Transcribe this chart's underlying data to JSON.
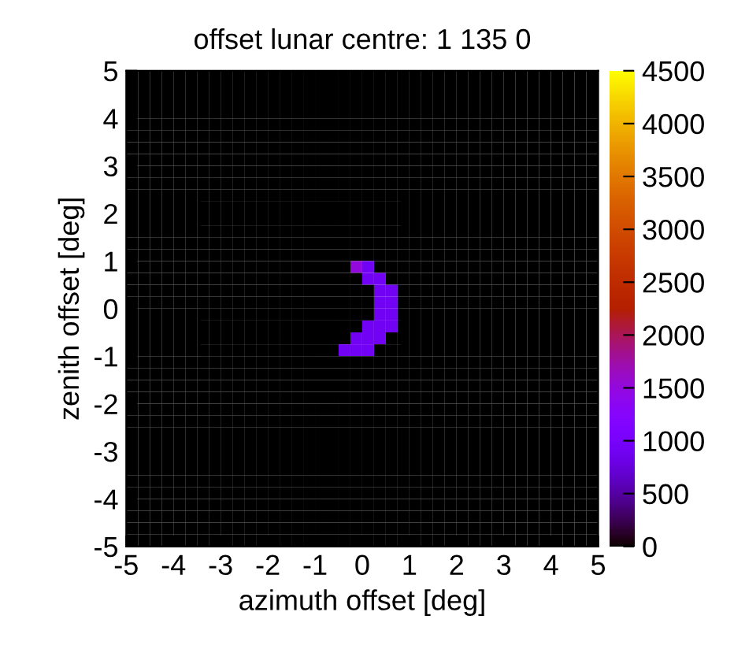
{
  "chart_data": {
    "type": "heatmap",
    "title": "offset lunar centre: 1 135 0",
    "xlabel": "azimuth offset [deg]",
    "ylabel": "zenith offset [deg]",
    "xlim": [
      -5,
      5
    ],
    "ylim": [
      -5,
      5
    ],
    "xticks": [
      -5,
      -4,
      -3,
      -2,
      -1,
      0,
      1,
      2,
      3,
      4,
      5
    ],
    "yticks": [
      -5,
      -4,
      -3,
      -2,
      -1,
      0,
      1,
      2,
      3,
      4,
      5
    ],
    "clim": [
      0,
      4500
    ],
    "cticks": [
      0,
      500,
      1000,
      1500,
      2000,
      2500,
      3000,
      3500,
      4000,
      4500
    ],
    "grid": false,
    "cells": [
      [
        0,
        0,
        0,
        0,
        0,
        0,
        0,
        0,
        0,
        0,
        0,
        0,
        0,
        0,
        0,
        0,
        0,
        0,
        0,
        0,
        0,
        0,
        0,
        0,
        0,
        0,
        0,
        0,
        0,
        0,
        0,
        0,
        0,
        0,
        0,
        0,
        0,
        0,
        0,
        0
      ],
      [
        0,
        0,
        0,
        0,
        0,
        0,
        0,
        0,
        0,
        0,
        0,
        0,
        0,
        0,
        0,
        0,
        0,
        0,
        0,
        0,
        0,
        0,
        0,
        0,
        0,
        0,
        0,
        0,
        0,
        0,
        0,
        0,
        0,
        0,
        0,
        0,
        0,
        0,
        0,
        0
      ],
      [
        0,
        0,
        0,
        0,
        0,
        0,
        0,
        0,
        0,
        0,
        0,
        0,
        0,
        0,
        0,
        0,
        0,
        0,
        0,
        0,
        0,
        0,
        0,
        0,
        0,
        0,
        0,
        0,
        0,
        0,
        0,
        0,
        0,
        0,
        0,
        0,
        0,
        0,
        0,
        0
      ],
      [
        0,
        0,
        0,
        0,
        0,
        0,
        0,
        0,
        0,
        0,
        0,
        0,
        0,
        0,
        0,
        0,
        0,
        0,
        0,
        0,
        0,
        0,
        0,
        0,
        0,
        0,
        0,
        0,
        0,
        0,
        0,
        0,
        0,
        0,
        0,
        0,
        0,
        0,
        0,
        0
      ],
      [
        0,
        0,
        0,
        0,
        0,
        0,
        0,
        0,
        0,
        0,
        0,
        0,
        0,
        0,
        0,
        0,
        0,
        0,
        0,
        0,
        0,
        0,
        0,
        0,
        0,
        0,
        0,
        0,
        0,
        0,
        0,
        0,
        0,
        0,
        0,
        0,
        0,
        0,
        0,
        0
      ],
      [
        0,
        0,
        0,
        0,
        0,
        0,
        0,
        0,
        0,
        0,
        0,
        0,
        0,
        0,
        0,
        0,
        0,
        0,
        0,
        0,
        0,
        0,
        0,
        0,
        0,
        0,
        0,
        0,
        0,
        0,
        0,
        0,
        0,
        0,
        0,
        0,
        0,
        0,
        0,
        0
      ],
      [
        0,
        0,
        0,
        0,
        0,
        0,
        0,
        0,
        0,
        0,
        0,
        0,
        0,
        0,
        0,
        0,
        0,
        0,
        0,
        0,
        0,
        0,
        0,
        0,
        0,
        0,
        0,
        0,
        0,
        0,
        0,
        0,
        0,
        0,
        0,
        0,
        0,
        0,
        0,
        0
      ],
      [
        0,
        0,
        0,
        0,
        0,
        0,
        0,
        0,
        0,
        0,
        0,
        0,
        0,
        0,
        0,
        0,
        0,
        0,
        0,
        0,
        0,
        0,
        0,
        0,
        0,
        0,
        0,
        0,
        0,
        0,
        0,
        0,
        0,
        0,
        0,
        0,
        0,
        0,
        0,
        0
      ],
      [
        0,
        0,
        0,
        0,
        0,
        0,
        0,
        0,
        0,
        0,
        0,
        0,
        0,
        0,
        0,
        0,
        0,
        0,
        0,
        0,
        0,
        0,
        0,
        0,
        0,
        0,
        0,
        0,
        0,
        0,
        0,
        0,
        0,
        0,
        0,
        0,
        0,
        0,
        0,
        0
      ],
      [
        0,
        0,
        0,
        0,
        0,
        0,
        0,
        0,
        0,
        0,
        0,
        0,
        0,
        0,
        0,
        0,
        0,
        0,
        0,
        0,
        0,
        0,
        0,
        0,
        0,
        0,
        0,
        0,
        0,
        0,
        0,
        0,
        0,
        0,
        0,
        0,
        0,
        0,
        0,
        0
      ],
      [
        0,
        0,
        0,
        0,
        0,
        0,
        0,
        0,
        0,
        0,
        0,
        0,
        0,
        0,
        0,
        0,
        0,
        0,
        0,
        0,
        0,
        0,
        0,
        0,
        0,
        0,
        0,
        0,
        0,
        0,
        0,
        0,
        0,
        0,
        0,
        0,
        0,
        0,
        0,
        0
      ],
      [
        0,
        0,
        0,
        0,
        0,
        0,
        0,
        0,
        0,
        0,
        0,
        0,
        0,
        0,
        0,
        0,
        0,
        0,
        0,
        0,
        0,
        0,
        0,
        0,
        0,
        0,
        0,
        0,
        0,
        0,
        0,
        0,
        0,
        0,
        0,
        0,
        0,
        0,
        0,
        0
      ],
      [
        0,
        0,
        0,
        0,
        0,
        0,
        0,
        0,
        0,
        0,
        0,
        0,
        0,
        0,
        0,
        0,
        0,
        0,
        0,
        0,
        0,
        0,
        0,
        0,
        0,
        0,
        0,
        0,
        0,
        0,
        0,
        0,
        0,
        0,
        0,
        0,
        0,
        0,
        0,
        0
      ],
      [
        0,
        0,
        0,
        0,
        0,
        0,
        0,
        0,
        0,
        0,
        0,
        0,
        0,
        0,
        0,
        0,
        0,
        0,
        0,
        0,
        0,
        0,
        0,
        0,
        0,
        0,
        0,
        0,
        0,
        0,
        0,
        0,
        0,
        0,
        0,
        0,
        0,
        0,
        0,
        0
      ],
      [
        0,
        0,
        0,
        0,
        0,
        0,
        0,
        0,
        0,
        0,
        0,
        0,
        0,
        0,
        0,
        0,
        0,
        0,
        0,
        0,
        0,
        0,
        0,
        0,
        0,
        0,
        0,
        0,
        0,
        0,
        0,
        0,
        0,
        0,
        0,
        0,
        0,
        0,
        0,
        0
      ],
      [
        0,
        0,
        0,
        0,
        0,
        0,
        0,
        0,
        0,
        0,
        0,
        0,
        0,
        0,
        0,
        0,
        0,
        0,
        0,
        0,
        0,
        0,
        0,
        0,
        0,
        0,
        0,
        0,
        0,
        0,
        0,
        0,
        0,
        0,
        0,
        0,
        0,
        0,
        0,
        0
      ],
      [
        0,
        0,
        0,
        0,
        0,
        0,
        0,
        0,
        0,
        0,
        0,
        0,
        0,
        0,
        0,
        0,
        0,
        0,
        0,
        1500,
        900,
        0,
        0,
        0,
        0,
        0,
        0,
        0,
        0,
        0,
        0,
        0,
        0,
        0,
        0,
        0,
        0,
        0,
        0,
        0
      ],
      [
        0,
        0,
        0,
        0,
        0,
        0,
        0,
        0,
        0,
        0,
        0,
        0,
        0,
        0,
        0,
        0,
        0,
        0,
        0,
        0,
        900,
        900,
        0,
        0,
        0,
        0,
        0,
        0,
        0,
        0,
        0,
        0,
        0,
        0,
        0,
        0,
        0,
        0,
        0,
        0
      ],
      [
        0,
        0,
        0,
        0,
        0,
        0,
        0,
        0,
        0,
        0,
        0,
        0,
        0,
        0,
        0,
        0,
        0,
        0,
        0,
        0,
        0,
        900,
        900,
        0,
        0,
        0,
        0,
        0,
        0,
        0,
        0,
        0,
        0,
        0,
        0,
        0,
        0,
        0,
        0,
        0
      ],
      [
        0,
        0,
        0,
        0,
        0,
        0,
        0,
        0,
        0,
        0,
        0,
        0,
        0,
        0,
        0,
        0,
        0,
        0,
        0,
        0,
        0,
        900,
        900,
        0,
        0,
        0,
        0,
        0,
        0,
        0,
        0,
        0,
        0,
        0,
        0,
        0,
        0,
        0,
        0,
        0
      ],
      [
        0,
        0,
        0,
        0,
        0,
        0,
        0,
        0,
        0,
        0,
        0,
        0,
        0,
        0,
        0,
        0,
        0,
        0,
        0,
        0,
        0,
        900,
        900,
        0,
        0,
        0,
        0,
        0,
        0,
        0,
        0,
        0,
        0,
        0,
        0,
        0,
        0,
        0,
        0,
        0
      ],
      [
        0,
        0,
        0,
        0,
        0,
        0,
        0,
        0,
        0,
        0,
        0,
        0,
        0,
        0,
        0,
        0,
        0,
        0,
        0,
        0,
        900,
        900,
        900,
        0,
        0,
        0,
        0,
        0,
        0,
        0,
        0,
        0,
        0,
        0,
        0,
        0,
        0,
        0,
        0,
        0
      ],
      [
        0,
        0,
        0,
        0,
        0,
        0,
        0,
        0,
        0,
        0,
        0,
        0,
        0,
        0,
        0,
        0,
        0,
        0,
        0,
        900,
        900,
        900,
        0,
        0,
        0,
        0,
        0,
        0,
        0,
        0,
        0,
        0,
        0,
        0,
        0,
        0,
        0,
        0,
        0,
        0
      ],
      [
        0,
        0,
        0,
        0,
        0,
        0,
        0,
        0,
        0,
        0,
        0,
        0,
        0,
        0,
        0,
        0,
        0,
        0,
        900,
        900,
        900,
        0,
        0,
        0,
        0,
        0,
        0,
        0,
        0,
        0,
        0,
        0,
        0,
        0,
        0,
        0,
        0,
        0,
        0,
        0
      ],
      [
        0,
        0,
        0,
        0,
        0,
        0,
        0,
        0,
        0,
        0,
        0,
        0,
        0,
        0,
        0,
        0,
        0,
        0,
        0,
        0,
        0,
        0,
        0,
        0,
        0,
        0,
        0,
        0,
        0,
        0,
        0,
        0,
        0,
        0,
        0,
        0,
        0,
        0,
        0,
        0
      ],
      [
        0,
        0,
        0,
        0,
        0,
        0,
        0,
        0,
        0,
        0,
        0,
        0,
        0,
        0,
        0,
        0,
        0,
        0,
        0,
        0,
        0,
        0,
        0,
        0,
        0,
        0,
        0,
        0,
        0,
        0,
        0,
        0,
        0,
        0,
        0,
        0,
        0,
        0,
        0,
        0
      ],
      [
        0,
        0,
        0,
        0,
        0,
        0,
        0,
        0,
        0,
        0,
        0,
        0,
        0,
        0,
        0,
        0,
        0,
        0,
        0,
        0,
        0,
        0,
        0,
        0,
        0,
        0,
        0,
        0,
        0,
        0,
        0,
        0,
        0,
        0,
        0,
        0,
        0,
        0,
        0,
        0
      ],
      [
        0,
        0,
        0,
        0,
        0,
        0,
        0,
        0,
        0,
        0,
        0,
        0,
        0,
        0,
        0,
        0,
        0,
        0,
        0,
        0,
        0,
        0,
        0,
        0,
        0,
        0,
        0,
        0,
        0,
        0,
        0,
        0,
        0,
        0,
        0,
        0,
        0,
        0,
        0,
        0
      ],
      [
        0,
        0,
        0,
        0,
        0,
        0,
        0,
        0,
        0,
        0,
        0,
        0,
        0,
        0,
        0,
        0,
        0,
        0,
        0,
        0,
        0,
        0,
        0,
        0,
        0,
        0,
        0,
        0,
        0,
        0,
        0,
        0,
        0,
        0,
        0,
        0,
        0,
        0,
        0,
        0
      ],
      [
        0,
        0,
        0,
        0,
        0,
        0,
        0,
        0,
        0,
        0,
        0,
        0,
        0,
        0,
        0,
        0,
        0,
        0,
        0,
        0,
        0,
        0,
        0,
        0,
        0,
        0,
        0,
        0,
        0,
        0,
        0,
        0,
        0,
        0,
        0,
        0,
        0,
        0,
        0,
        0
      ],
      [
        0,
        0,
        0,
        0,
        0,
        0,
        0,
        0,
        0,
        0,
        0,
        0,
        0,
        0,
        0,
        0,
        0,
        0,
        0,
        0,
        0,
        0,
        0,
        0,
        0,
        0,
        0,
        0,
        0,
        0,
        0,
        0,
        0,
        0,
        0,
        0,
        0,
        0,
        0,
        0
      ],
      [
        0,
        0,
        0,
        0,
        0,
        0,
        0,
        0,
        0,
        0,
        0,
        0,
        0,
        0,
        0,
        0,
        0,
        0,
        0,
        0,
        0,
        0,
        0,
        0,
        0,
        0,
        0,
        0,
        0,
        0,
        0,
        0,
        0,
        0,
        0,
        0,
        0,
        0,
        0,
        0
      ],
      [
        0,
        0,
        0,
        0,
        0,
        0,
        0,
        0,
        0,
        0,
        0,
        0,
        0,
        0,
        0,
        0,
        0,
        0,
        0,
        0,
        0,
        0,
        0,
        0,
        0,
        0,
        0,
        0,
        0,
        0,
        0,
        0,
        0,
        0,
        0,
        0,
        0,
        0,
        0,
        0
      ],
      [
        0,
        0,
        0,
        0,
        0,
        0,
        0,
        0,
        0,
        0,
        0,
        0,
        0,
        0,
        0,
        0,
        0,
        0,
        0,
        0,
        0,
        0,
        0,
        0,
        0,
        0,
        0,
        0,
        0,
        0,
        0,
        0,
        0,
        0,
        0,
        0,
        0,
        0,
        0,
        0
      ],
      [
        0,
        0,
        0,
        0,
        0,
        0,
        0,
        0,
        0,
        0,
        0,
        0,
        0,
        0,
        0,
        0,
        0,
        0,
        0,
        0,
        0,
        0,
        0,
        0,
        0,
        0,
        0,
        0,
        0,
        0,
        0,
        0,
        0,
        0,
        0,
        0,
        0,
        0,
        0,
        0
      ],
      [
        0,
        0,
        0,
        0,
        0,
        0,
        0,
        0,
        0,
        0,
        0,
        0,
        0,
        0,
        0,
        0,
        0,
        0,
        0,
        0,
        0,
        0,
        0,
        0,
        0,
        0,
        0,
        0,
        0,
        0,
        0,
        0,
        0,
        0,
        0,
        0,
        0,
        0,
        0,
        0
      ],
      [
        0,
        0,
        0,
        0,
        0,
        0,
        0,
        0,
        0,
        0,
        0,
        0,
        0,
        0,
        0,
        0,
        0,
        0,
        0,
        0,
        0,
        0,
        0,
        0,
        0,
        0,
        0,
        0,
        0,
        0,
        0,
        0,
        0,
        0,
        0,
        0,
        0,
        0,
        0,
        0
      ],
      [
        0,
        0,
        0,
        0,
        0,
        0,
        0,
        0,
        0,
        0,
        0,
        0,
        0,
        0,
        0,
        0,
        0,
        0,
        0,
        0,
        0,
        0,
        0,
        0,
        0,
        0,
        0,
        0,
        0,
        0,
        0,
        0,
        0,
        0,
        0,
        0,
        0,
        0,
        0,
        0
      ],
      [
        0,
        0,
        0,
        0,
        0,
        0,
        0,
        0,
        0,
        0,
        0,
        0,
        0,
        0,
        0,
        0,
        0,
        0,
        0,
        0,
        0,
        0,
        0,
        0,
        0,
        0,
        0,
        0,
        0,
        0,
        0,
        0,
        0,
        0,
        0,
        0,
        0,
        0,
        0,
        0
      ],
      [
        0,
        0,
        0,
        0,
        0,
        0,
        0,
        0,
        0,
        0,
        0,
        0,
        0,
        0,
        0,
        0,
        0,
        0,
        0,
        0,
        0,
        0,
        0,
        0,
        0,
        0,
        0,
        0,
        0,
        0,
        0,
        0,
        0,
        0,
        0,
        0,
        0,
        0,
        0,
        0
      ]
    ]
  }
}
